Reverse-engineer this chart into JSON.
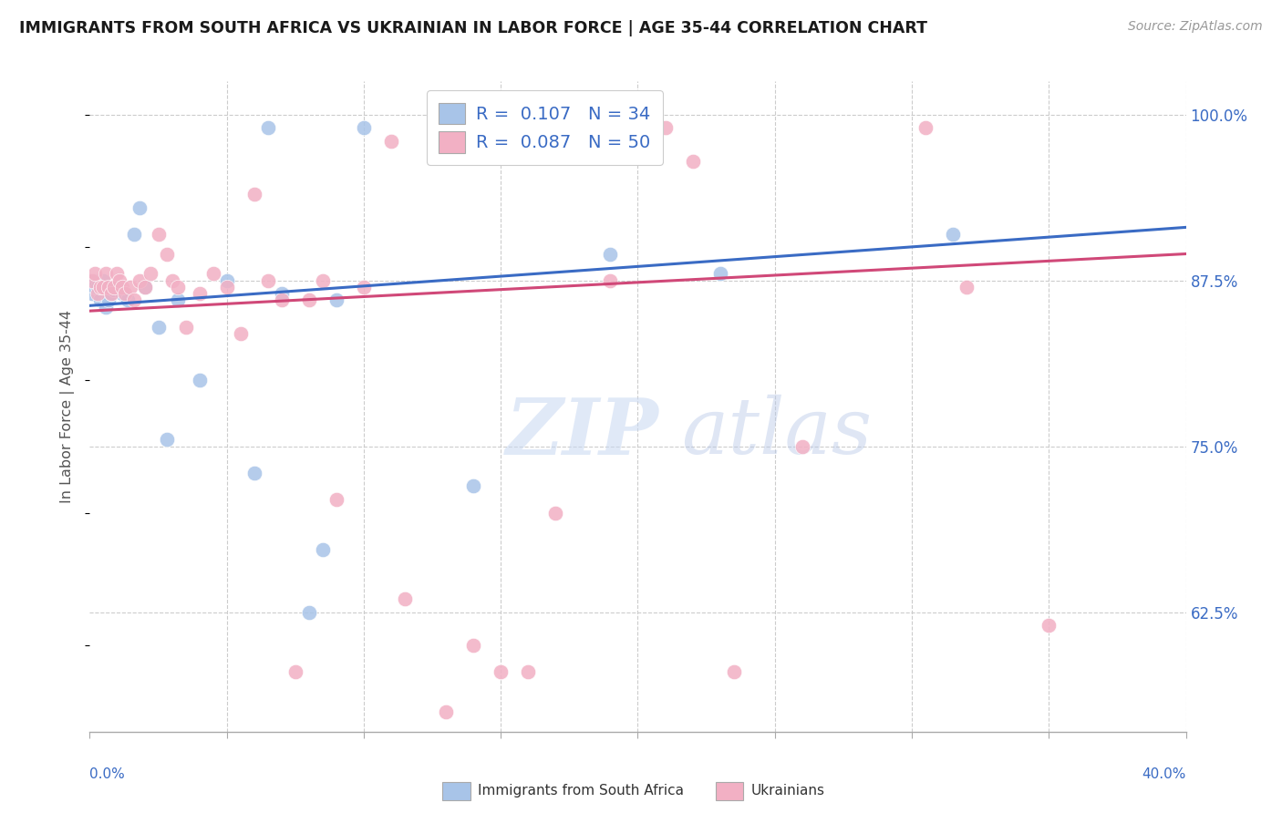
{
  "title": "IMMIGRANTS FROM SOUTH AFRICA VS UKRAINIAN IN LABOR FORCE | AGE 35-44 CORRELATION CHART",
  "source": "Source: ZipAtlas.com",
  "ylabel": "In Labor Force | Age 35-44",
  "blue_color": "#a8c4e8",
  "pink_color": "#f2b0c4",
  "blue_line_color": "#3a6bc4",
  "pink_line_color": "#d04878",
  "label_color": "#3a6bc4",
  "xmin": 0.0,
  "xmax": 0.4,
  "ymin": 0.535,
  "ymax": 1.025,
  "yticks": [
    0.625,
    0.75,
    0.875,
    1.0
  ],
  "ytick_labels": [
    "62.5%",
    "75.0%",
    "87.5%",
    "100.0%"
  ],
  "R_blue": 0.107,
  "R_pink": 0.087,
  "N_blue": 34,
  "N_pink": 50,
  "blue_x": [
    0.0005,
    0.001,
    0.0015,
    0.002,
    0.003,
    0.004,
    0.005,
    0.006,
    0.007,
    0.008,
    0.009,
    0.01,
    0.012,
    0.014,
    0.016,
    0.018,
    0.02,
    0.025,
    0.028,
    0.032,
    0.04,
    0.05,
    0.06,
    0.065,
    0.07,
    0.08,
    0.085,
    0.09,
    0.1,
    0.14,
    0.145,
    0.19,
    0.23,
    0.315
  ],
  "blue_y": [
    0.875,
    0.865,
    0.875,
    0.87,
    0.87,
    0.86,
    0.875,
    0.855,
    0.86,
    0.865,
    0.868,
    0.87,
    0.865,
    0.86,
    0.91,
    0.93,
    0.87,
    0.84,
    0.755,
    0.86,
    0.8,
    0.875,
    0.73,
    0.99,
    0.865,
    0.625,
    0.672,
    0.86,
    0.99,
    0.72,
    0.99,
    0.895,
    0.88,
    0.91
  ],
  "pink_x": [
    0.001,
    0.002,
    0.003,
    0.004,
    0.005,
    0.006,
    0.007,
    0.008,
    0.009,
    0.01,
    0.011,
    0.012,
    0.013,
    0.015,
    0.016,
    0.018,
    0.02,
    0.022,
    0.025,
    0.028,
    0.03,
    0.032,
    0.035,
    0.04,
    0.055,
    0.06,
    0.065,
    0.07,
    0.1,
    0.11,
    0.13,
    0.14,
    0.15,
    0.17,
    0.21,
    0.22,
    0.235,
    0.26,
    0.305,
    0.32,
    0.35,
    0.08,
    0.09,
    0.045,
    0.05,
    0.075,
    0.085,
    0.115,
    0.16,
    0.19
  ],
  "pink_y": [
    0.875,
    0.88,
    0.865,
    0.87,
    0.87,
    0.88,
    0.87,
    0.865,
    0.87,
    0.88,
    0.875,
    0.87,
    0.865,
    0.87,
    0.86,
    0.875,
    0.87,
    0.88,
    0.91,
    0.895,
    0.875,
    0.87,
    0.84,
    0.865,
    0.835,
    0.94,
    0.875,
    0.86,
    0.87,
    0.98,
    0.55,
    0.6,
    0.58,
    0.7,
    0.99,
    0.965,
    0.58,
    0.75,
    0.99,
    0.87,
    0.615,
    0.86,
    0.71,
    0.88,
    0.87,
    0.58,
    0.875,
    0.635,
    0.58,
    0.875
  ],
  "watermark_zip": "ZIP",
  "watermark_atlas": "atlas"
}
